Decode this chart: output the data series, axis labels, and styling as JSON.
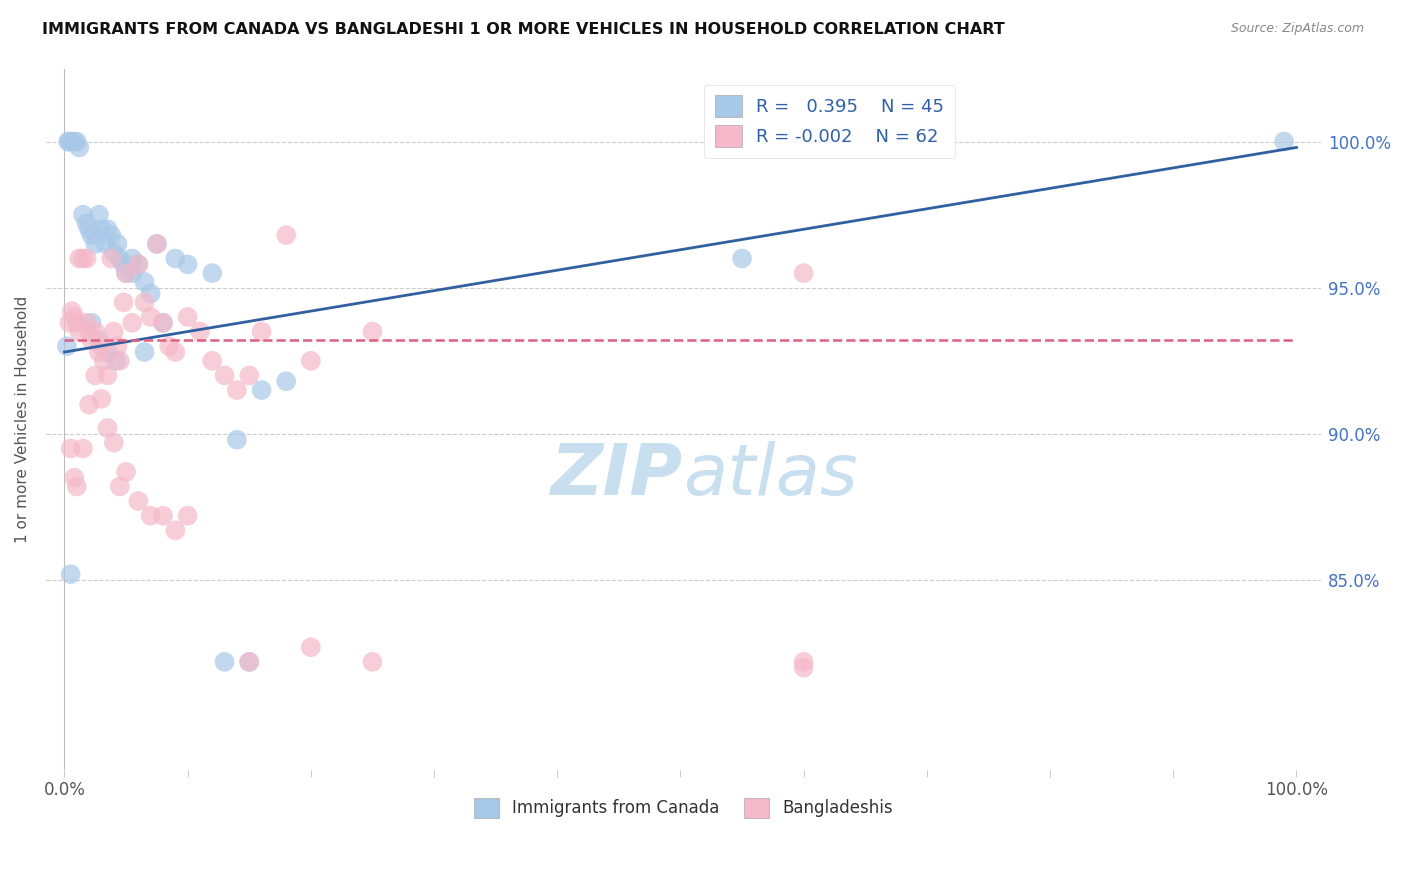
{
  "title": "IMMIGRANTS FROM CANADA VS BANGLADESHI 1 OR MORE VEHICLES IN HOUSEHOLD CORRELATION CHART",
  "source": "Source: ZipAtlas.com",
  "ylabel": "1 or more Vehicles in Household",
  "ytick_labels": [
    "85.0%",
    "90.0%",
    "95.0%",
    "100.0%"
  ],
  "ytick_values": [
    0.85,
    0.9,
    0.95,
    1.0
  ],
  "legend_label1": "Immigrants from Canada",
  "legend_label2": "Bangladeshis",
  "r_blue": 0.395,
  "n_blue": 45,
  "r_pink": -0.002,
  "n_pink": 62,
  "color_blue": "#a8c8e8",
  "color_pink": "#f4b8c8",
  "color_blue_line": "#3060a0",
  "color_pink_line": "#e06080",
  "watermark_color": "#c8dff0",
  "blue_x": [
    0.002,
    0.005,
    0.008,
    0.01,
    0.012,
    0.015,
    0.018,
    0.02,
    0.022,
    0.025,
    0.028,
    0.03,
    0.033,
    0.035,
    0.038,
    0.04,
    0.043,
    0.045,
    0.048,
    0.05,
    0.055,
    0.06,
    0.065,
    0.07,
    0.075,
    0.08,
    0.09,
    0.1,
    0.12,
    0.14,
    0.16,
    0.18,
    0.022,
    0.028,
    0.035,
    0.042,
    0.055,
    0.065,
    0.55,
    0.005,
    0.13,
    0.15,
    0.003,
    0.004,
    0.99
  ],
  "blue_y": [
    0.93,
    1.0,
    1.0,
    1.0,
    0.998,
    0.975,
    0.972,
    0.97,
    0.968,
    0.965,
    0.975,
    0.97,
    0.965,
    0.97,
    0.968,
    0.962,
    0.965,
    0.96,
    0.958,
    0.955,
    0.96,
    0.958,
    0.952,
    0.948,
    0.965,
    0.938,
    0.96,
    0.958,
    0.955,
    0.898,
    0.915,
    0.918,
    0.938,
    0.932,
    0.928,
    0.925,
    0.955,
    0.928,
    0.96,
    0.852,
    0.822,
    0.822,
    1.0,
    1.0,
    1.0
  ],
  "pink_x": [
    0.004,
    0.006,
    0.008,
    0.01,
    0.012,
    0.015,
    0.018,
    0.02,
    0.022,
    0.025,
    0.028,
    0.03,
    0.032,
    0.035,
    0.038,
    0.04,
    0.043,
    0.045,
    0.048,
    0.05,
    0.055,
    0.06,
    0.065,
    0.07,
    0.075,
    0.08,
    0.085,
    0.09,
    0.1,
    0.11,
    0.12,
    0.13,
    0.14,
    0.15,
    0.16,
    0.18,
    0.2,
    0.25,
    0.6,
    0.005,
    0.008,
    0.01,
    0.015,
    0.02,
    0.025,
    0.03,
    0.035,
    0.04,
    0.045,
    0.05,
    0.06,
    0.07,
    0.08,
    0.09,
    0.1,
    0.15,
    0.2,
    0.25,
    0.6,
    0.012,
    0.018,
    0.6
  ],
  "pink_y": [
    0.938,
    0.942,
    0.94,
    0.938,
    0.935,
    0.96,
    0.938,
    0.935,
    0.932,
    0.935,
    0.928,
    0.93,
    0.925,
    0.92,
    0.96,
    0.935,
    0.93,
    0.925,
    0.945,
    0.955,
    0.938,
    0.958,
    0.945,
    0.94,
    0.965,
    0.938,
    0.93,
    0.928,
    0.94,
    0.935,
    0.925,
    0.92,
    0.915,
    0.92,
    0.935,
    0.968,
    0.925,
    0.935,
    0.955,
    0.895,
    0.885,
    0.882,
    0.895,
    0.91,
    0.92,
    0.912,
    0.902,
    0.897,
    0.882,
    0.887,
    0.877,
    0.872,
    0.872,
    0.867,
    0.872,
    0.822,
    0.827,
    0.822,
    0.822,
    0.96,
    0.96,
    0.82
  ]
}
